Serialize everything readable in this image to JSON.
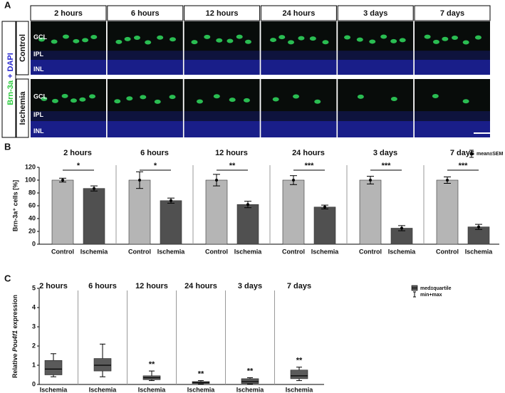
{
  "panel_a": {
    "panel_label": "A",
    "columns": [
      "2 hours",
      "6 hours",
      "12 hours",
      "24 hours",
      "3 days",
      "7 days"
    ],
    "rows": [
      "Control",
      "Ischemia"
    ],
    "stain": [
      "Brn-3a",
      "+ DAPI"
    ],
    "layers": [
      "GCL",
      "IPL",
      "INL"
    ]
  },
  "chart_data": [
    {
      "panel_label": "B",
      "type": "bar",
      "groups": [
        "2 hours",
        "6 hours",
        "12 hours",
        "24 hours",
        "3 days",
        "7 days"
      ],
      "series": [
        {
          "name": "Control",
          "color": "#b5b5b5",
          "values": [
            100,
            100,
            100,
            100,
            100,
            100
          ],
          "errors": [
            3,
            13,
            9,
            7,
            6,
            5
          ]
        },
        {
          "name": "Ischemia",
          "color": "#505050",
          "values": [
            87,
            68,
            62,
            58,
            25,
            27
          ],
          "errors": [
            4,
            4,
            5,
            3,
            4,
            4
          ]
        }
      ],
      "significance": [
        "*",
        "*",
        "**",
        "***",
        "***",
        "***"
      ],
      "ylabel": "Brn-3a⁺ cells [%]",
      "ylim": [
        0,
        120
      ],
      "yticks": [
        0,
        20,
        40,
        60,
        80,
        100,
        120
      ],
      "legend": "mean±SEM"
    },
    {
      "panel_label": "C",
      "type": "box",
      "groups": [
        "2 hours",
        "6 hours",
        "12 hours",
        "24 hours",
        "3 days",
        "7 days"
      ],
      "category": "Ischemia",
      "color": "#5a5a5a",
      "boxes": [
        {
          "min": 0.4,
          "q1": 0.5,
          "median": 0.8,
          "q3": 1.25,
          "max": 1.6
        },
        {
          "min": 0.4,
          "q1": 0.7,
          "median": 1.0,
          "q3": 1.35,
          "max": 2.1
        },
        {
          "min": 0.2,
          "q1": 0.25,
          "median": 0.35,
          "q3": 0.45,
          "max": 0.7
        },
        {
          "min": 0.02,
          "q1": 0.05,
          "median": 0.1,
          "q3": 0.15,
          "max": 0.2
        },
        {
          "min": 0.02,
          "q1": 0.05,
          "median": 0.15,
          "q3": 0.3,
          "max": 0.35
        },
        {
          "min": 0.2,
          "q1": 0.3,
          "median": 0.45,
          "q3": 0.75,
          "max": 0.9
        }
      ],
      "significance": [
        null,
        null,
        "**",
        "**",
        "**",
        "**"
      ],
      "ylabel_parts": [
        "Relative ",
        "Pou4f1",
        " expression"
      ],
      "ylim": [
        0,
        5
      ],
      "yticks": [
        0,
        1,
        2,
        3,
        4,
        5
      ],
      "legend": [
        "med±quartile",
        "min+max"
      ]
    }
  ]
}
